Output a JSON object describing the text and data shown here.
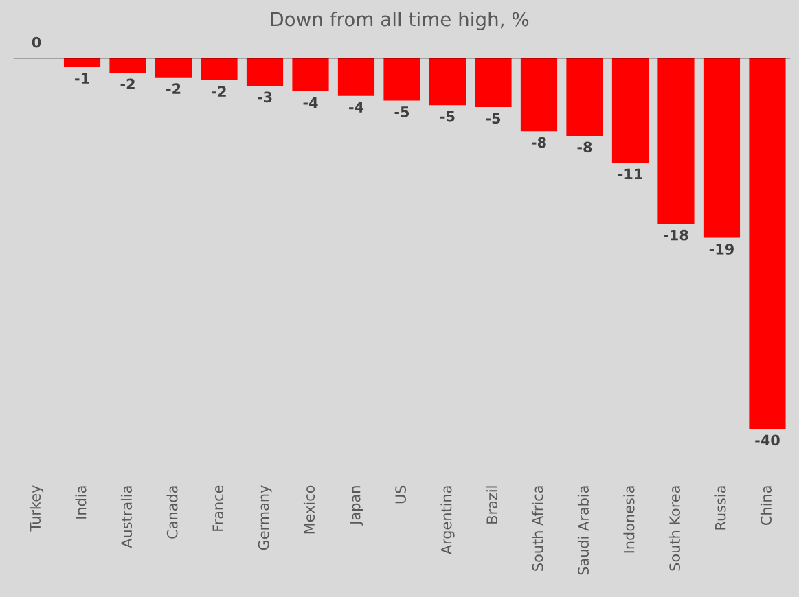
{
  "chart_data": {
    "type": "bar",
    "title": "Down from all time high, %",
    "categories": [
      "Turkey",
      "India",
      "Australia",
      "Canada",
      "France",
      "Germany",
      "Mexico",
      "Japan",
      "US",
      "Argentina",
      "Brazil",
      "South Africa",
      "Saudi Arabia",
      "Indonesia",
      "South Korea",
      "Russia",
      "China"
    ],
    "values": [
      0,
      -1.0,
      -1.6,
      -2.1,
      -2.4,
      -3.0,
      -3.6,
      -4.1,
      -4.6,
      -5.1,
      -5.3,
      -7.9,
      -8.4,
      -11.3,
      -17.9,
      -19.4,
      -40
    ],
    "value_labels": [
      "0",
      "-1",
      "-2",
      "-2",
      "-2",
      "-3",
      "-4",
      "-4",
      "-5",
      "-5",
      "-5",
      "-8",
      "-8",
      "-11",
      "-18",
      "-19",
      "-40"
    ],
    "color": "#ff0000",
    "grid": false,
    "legend": false
  }
}
